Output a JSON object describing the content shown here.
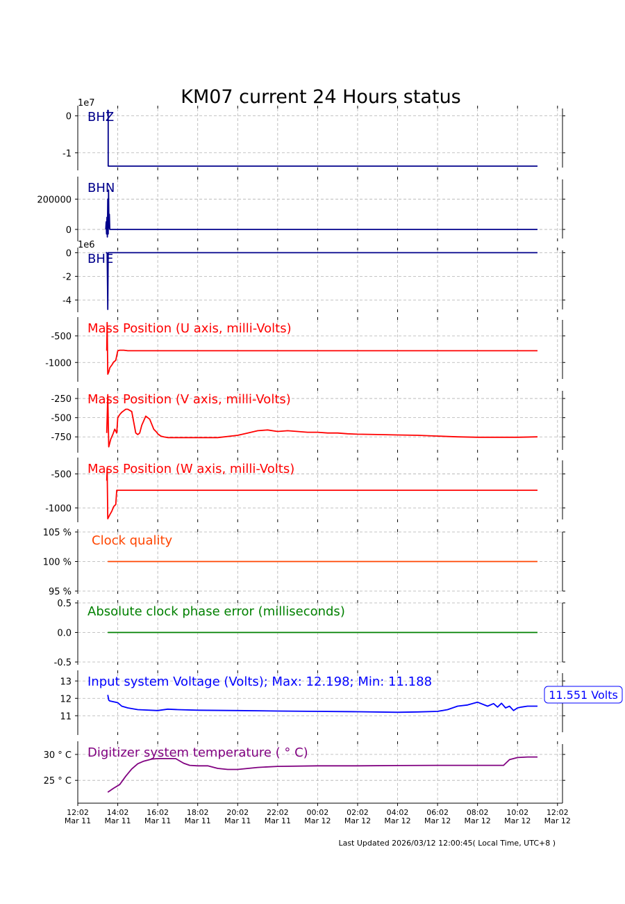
{
  "chart_data": {
    "type": "line",
    "title": "KM07 current 24 Hours status",
    "footer": "Last Updated 2026/03/12 12:00:45( Local Time, UTC+8 )",
    "x_tick_labels": [
      [
        "12:02",
        "Mar 11"
      ],
      [
        "14:02",
        "Mar 11"
      ],
      [
        "16:02",
        "Mar 11"
      ],
      [
        "18:02",
        "Mar 11"
      ],
      [
        "20:02",
        "Mar 11"
      ],
      [
        "22:02",
        "Mar 11"
      ],
      [
        "00:02",
        "Mar 12"
      ],
      [
        "02:02",
        "Mar 12"
      ],
      [
        "04:02",
        "Mar 12"
      ],
      [
        "06:02",
        "Mar 12"
      ],
      [
        "08:02",
        "Mar 12"
      ],
      [
        "10:02",
        "Mar 12"
      ],
      [
        "12:02",
        "Mar 12"
      ]
    ],
    "x_range_hours": [
      0,
      24.25
    ],
    "grid": true,
    "panels": [
      {
        "label": "BHZ",
        "color": "#00008b",
        "scale_label": "1e7",
        "ylim": [
          -1.4,
          0.2
        ],
        "yticks": [
          {
            "v": 0,
            "t": "0"
          },
          {
            "v": -1,
            "t": "-1"
          }
        ],
        "x": [
          1.5,
          1.5,
          1.52,
          1.52,
          23.0
        ],
        "y": [
          0,
          0.15,
          0.15,
          -1.36,
          -1.36
        ]
      },
      {
        "label": "BHN",
        "color": "#00008b",
        "scale_label": "",
        "ylim": [
          -60000,
          330000
        ],
        "yticks": [
          {
            "v": 200000,
            "t": "200000"
          },
          {
            "v": 0,
            "t": "0"
          }
        ],
        "x": [
          1.4,
          1.42,
          1.44,
          1.46,
          1.48,
          1.5,
          1.52,
          1.54,
          1.56,
          1.58,
          1.6,
          1.7,
          23.0
        ],
        "y": [
          0,
          50000,
          -30000,
          80000,
          -50000,
          200000,
          -30000,
          260000,
          10000,
          100000,
          0,
          0,
          0
        ],
        "last_segment": [
          [
            1.45,
            0
          ],
          [
            23.0,
            0
          ]
        ]
      },
      {
        "label": "BHE",
        "color": "#00008b",
        "scale_label": "1e6",
        "ylim": [
          -4.8,
          0.2
        ],
        "yticks": [
          {
            "v": 0,
            "t": "0"
          },
          {
            "v": -2,
            "t": "-2"
          },
          {
            "v": -4,
            "t": "-4"
          }
        ],
        "x": [
          1.4,
          1.45,
          1.47,
          1.5,
          1.52,
          1.55,
          23.0
        ],
        "y": [
          0,
          0,
          -0.05,
          -4.8,
          0,
          0,
          0
        ]
      },
      {
        "label": "Mass Position (U axis, milli-Volts)",
        "color": "#ff0000",
        "scale_label": "",
        "ylim": [
          -1310,
          -200
        ],
        "yticks": [
          {
            "v": -500,
            "t": "-500"
          },
          {
            "v": -1000,
            "t": "-1000"
          }
        ],
        "x": [
          1.45,
          1.47,
          1.5,
          1.55,
          1.6,
          1.7,
          1.8,
          1.9,
          2.0,
          2.1,
          2.3,
          2.5,
          23.0
        ],
        "y": [
          -780,
          -250,
          -1220,
          -1180,
          -1100,
          -1050,
          -990,
          -960,
          -780,
          -770,
          -770,
          -780,
          -780
        ]
      },
      {
        "label": "Mass Position (V axis, milli-Volts)",
        "color": "#ff0000",
        "scale_label": "",
        "ylim": [
          -920,
          -150
        ],
        "yticks": [
          {
            "v": -250,
            "t": "-250"
          },
          {
            "v": -500,
            "t": "-500"
          },
          {
            "v": -750,
            "t": "-750"
          }
        ],
        "x": [
          1.45,
          1.5,
          1.55,
          1.65,
          1.75,
          1.85,
          1.95,
          2.0,
          2.1,
          2.2,
          2.3,
          2.4,
          2.5,
          2.7,
          2.9,
          3.0,
          3.1,
          3.2,
          3.4,
          3.6,
          3.8,
          3.95,
          4.0,
          4.05,
          4.15,
          4.3,
          4.5,
          4.8,
          5.0,
          5.5,
          6.0,
          7.0,
          8.0,
          8.5,
          9.0,
          9.5,
          10.0,
          10.5,
          11.0,
          11.5,
          12.0,
          12.5,
          13.0,
          13.5,
          14.0,
          15.0,
          16.0,
          17.0,
          18.0,
          19.0,
          20.0,
          21.0,
          22.0,
          23.0
        ],
        "y": [
          -700,
          -200,
          -880,
          -780,
          -720,
          -650,
          -700,
          -500,
          -460,
          -430,
          -410,
          -390,
          -390,
          -420,
          -700,
          -720,
          -700,
          -600,
          -480,
          -520,
          -650,
          -690,
          -710,
          -720,
          -740,
          -750,
          -760,
          -760,
          -760,
          -760,
          -760,
          -760,
          -730,
          -700,
          -670,
          -660,
          -680,
          -670,
          -680,
          -690,
          -690,
          -700,
          -700,
          -710,
          -715,
          -720,
          -725,
          -730,
          -740,
          -750,
          -755,
          -755,
          -755,
          -750
        ]
      },
      {
        "label": "Mass Position (W axis, milli-Volts)",
        "color": "#ff0000",
        "scale_label": "",
        "ylim": [
          -1170,
          -300
        ],
        "yticks": [
          {
            "v": -500,
            "t": "-500"
          },
          {
            "v": -1000,
            "t": "-1000"
          }
        ],
        "x": [
          1.45,
          1.47,
          1.5,
          1.6,
          1.7,
          1.8,
          1.9,
          1.95,
          2.0,
          2.1,
          23.0
        ],
        "y": [
          -600,
          -420,
          -1160,
          -1100,
          -1050,
          -980,
          -950,
          -740,
          -740,
          -740,
          -740
        ]
      },
      {
        "label": "Clock quality",
        "color": "#ff4500",
        "scale_label": "",
        "ylim": [
          95,
          105
        ],
        "yticks": [
          {
            "v": 105,
            "t": "105 %"
          },
          {
            "v": 100,
            "t": "100 %"
          },
          {
            "v": 95,
            "t": "95 %"
          }
        ],
        "x": [
          1.5,
          23.0
        ],
        "y": [
          100,
          100
        ]
      },
      {
        "label": "Absolute clock phase error (milliseconds)",
        "color": "#008000",
        "scale_label": "",
        "ylim": [
          -0.5,
          0.5
        ],
        "yticks": [
          {
            "v": 0.5,
            "t": "0.5"
          },
          {
            "v": 0.0,
            "t": "0.0"
          },
          {
            "v": -0.5,
            "t": "-0.5"
          }
        ],
        "x": [
          1.5,
          23.0
        ],
        "y": [
          0,
          0
        ]
      },
      {
        "label": "Input system Voltage (Volts);    Max: 12.198; Min: 11.188",
        "color": "#0000ff",
        "scale_label": "",
        "annotation": "11.551 Volts",
        "ylim": [
          10.05,
          13.45
        ],
        "yticks": [
          {
            "v": 13,
            "t": "13"
          },
          {
            "v": 12,
            "t": "12"
          },
          {
            "v": 11,
            "t": "11"
          }
        ],
        "x": [
          1.5,
          1.55,
          1.6,
          1.8,
          2.0,
          2.2,
          2.5,
          3.0,
          4.0,
          4.5,
          5.0,
          6.0,
          8.0,
          10.0,
          12.0,
          14.0,
          16.0,
          17.0,
          18.0,
          18.5,
          19.0,
          19.5,
          20.0,
          20.5,
          20.8,
          21.0,
          21.2,
          21.4,
          21.6,
          21.8,
          22.0,
          22.2,
          22.5,
          23.0
        ],
        "y": [
          12.2,
          11.9,
          11.85,
          11.8,
          11.75,
          11.55,
          11.45,
          11.35,
          11.3,
          11.38,
          11.35,
          11.32,
          11.3,
          11.27,
          11.25,
          11.23,
          11.2,
          11.22,
          11.25,
          11.35,
          11.55,
          11.62,
          11.78,
          11.55,
          11.7,
          11.5,
          11.72,
          11.45,
          11.55,
          11.3,
          11.45,
          11.5,
          11.55,
          11.551
        ]
      },
      {
        "label": "Digitizer system temperature ( ° C)",
        "color": "#800080",
        "scale_label": "",
        "ylim": [
          20.6,
          32.0
        ],
        "yticks": [
          {
            "v": 30,
            "t": "30  ° C"
          },
          {
            "v": 25,
            "t": "25  ° C"
          }
        ],
        "x": [
          1.5,
          1.8,
          2.1,
          2.4,
          2.7,
          3.0,
          3.3,
          3.7,
          4.0,
          4.5,
          4.9,
          5.3,
          5.6,
          6.0,
          6.5,
          7.0,
          7.5,
          8.0,
          9.0,
          10.0,
          12.0,
          14.0,
          16.0,
          18.0,
          20.0,
          21.0,
          21.3,
          21.6,
          22.0,
          22.5,
          23.0
        ],
        "y": [
          22.7,
          23.5,
          24.2,
          25.8,
          27.2,
          28.2,
          28.7,
          29.1,
          29.2,
          29.2,
          29.2,
          28.3,
          27.9,
          27.8,
          27.8,
          27.3,
          27.1,
          27.1,
          27.5,
          27.7,
          27.8,
          27.8,
          27.85,
          27.9,
          27.9,
          27.9,
          27.9,
          29.0,
          29.4,
          29.5,
          29.5
        ]
      }
    ]
  }
}
